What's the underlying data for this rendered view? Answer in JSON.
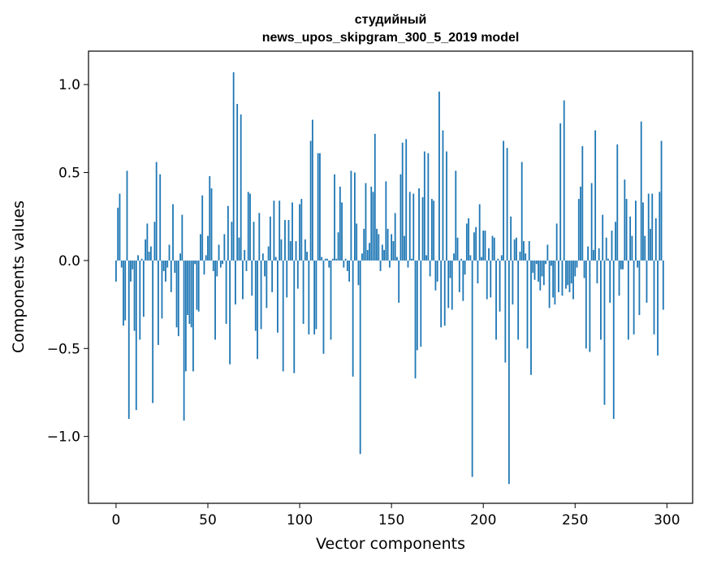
{
  "chart_data": {
    "type": "bar",
    "title": "студийный",
    "subtitle": "news_upos_skipgram_300_5_2019 model",
    "xlabel": "Vector components",
    "ylabel": "Components values",
    "xlim": [
      -15,
      314
    ],
    "ylim": [
      -1.38,
      1.19
    ],
    "xticks": [
      0,
      50,
      100,
      150,
      200,
      250,
      300
    ],
    "yticks": [
      1.0,
      0.5,
      0.0,
      -0.5,
      -1.0
    ],
    "ytick_labels": [
      "1.0",
      "0.5",
      "0.0",
      "−0.5",
      "−1.0"
    ],
    "bar_color": "#1f77b4",
    "values": [
      -0.12,
      0.3,
      0.38,
      -0.04,
      -0.37,
      -0.34,
      0.51,
      -0.9,
      -0.12,
      -0.05,
      -0.4,
      -0.85,
      0.03,
      -0.45,
      0.01,
      -0.32,
      0.12,
      0.21,
      0.05,
      0.08,
      -0.81,
      0.22,
      0.56,
      -0.48,
      0.49,
      -0.33,
      -0.06,
      -0.12,
      -0.04,
      0.09,
      -0.18,
      0.32,
      -0.07,
      -0.38,
      -0.43,
      0.04,
      0.26,
      -0.91,
      -0.63,
      -0.31,
      -0.36,
      -0.38,
      -0.63,
      -0.02,
      -0.28,
      -0.29,
      0.15,
      0.37,
      -0.08,
      0.03,
      0.14,
      0.48,
      0.41,
      -0.06,
      -0.45,
      -0.09,
      0.09,
      -0.04,
      -0.02,
      0.15,
      -0.36,
      0.31,
      -0.59,
      0.22,
      1.07,
      -0.25,
      0.89,
      0.13,
      0.83,
      -0.22,
      0.06,
      -0.06,
      0.39,
      0.38,
      -0.2,
      0.22,
      -0.4,
      -0.56,
      0.27,
      -0.39,
      0.04,
      -0.09,
      -0.27,
      0.08,
      0.25,
      -0.18,
      0.34,
      0.02,
      -0.41,
      0.34,
      0.12,
      -0.63,
      0.23,
      -0.21,
      0.23,
      0.11,
      0.33,
      -0.64,
      0.11,
      -0.16,
      0.32,
      0.35,
      -0.36,
      0.12,
      0.05,
      -0.42,
      0.68,
      0.8,
      -0.42,
      -0.39,
      0.61,
      0.61,
      0.02,
      -0.53,
      0.01,
      0.01,
      -0.04,
      -0.45,
      0.01,
      0.49,
      0.01,
      0.16,
      0.42,
      0.33,
      -0.04,
      0.01,
      -0.06,
      -0.12,
      0.51,
      -0.66,
      0.5,
      0.21,
      -0.14,
      -1.1,
      0.04,
      0.18,
      0.44,
      0.06,
      0.1,
      0.42,
      0.39,
      0.72,
      0.18,
      0.15,
      -0.06,
      0.09,
      0.06,
      0.45,
      0.18,
      -0.04,
      0.15,
      0.11,
      0.27,
      0.02,
      -0.24,
      0.49,
      0.67,
      0.14,
      0.69,
      -0.04,
      0.39,
      0.01,
      0.38,
      -0.67,
      -0.51,
      0.41,
      -0.49,
      0.36,
      0.62,
      0.03,
      0.61,
      -0.09,
      0.35,
      0.34,
      -0.17,
      -0.12,
      0.96,
      -0.38,
      0.74,
      -0.37,
      0.62,
      -0.27,
      -0.1,
      -0.28,
      0.04,
      0.51,
      0.13,
      -0.18,
      0.01,
      -0.23,
      -0.08,
      0.21,
      0.24,
      0.03,
      -1.23,
      0.16,
      0.19,
      -0.13,
      0.32,
      0.02,
      0.17,
      0.17,
      -0.22,
      0.07,
      -0.21,
      0.14,
      0.13,
      -0.45,
      0.01,
      -0.29,
      0.03,
      0.68,
      -0.58,
      0.64,
      -1.27,
      0.25,
      -0.25,
      0.12,
      0.13,
      -0.45,
      0.05,
      0.56,
      0.11,
      0.04,
      -0.5,
      0.11,
      -0.65,
      -0.07,
      -0.11,
      -0.02,
      -0.12,
      -0.17,
      -0.09,
      -0.14,
      -0.02,
      0.09,
      -0.27,
      -0.03,
      -0.21,
      -0.25,
      0.21,
      -0.18,
      0.78,
      -0.2,
      0.91,
      -0.16,
      -0.14,
      -0.18,
      -0.13,
      -0.22,
      -0.09,
      -0.04,
      0.35,
      0.42,
      0.65,
      -0.1,
      -0.5,
      0.08,
      -0.52,
      0.44,
      0.06,
      0.74,
      -0.13,
      0.07,
      -0.45,
      0.26,
      -0.82,
      0.13,
      0.01,
      -0.24,
      0.17,
      -0.9,
      0.22,
      0.66,
      -0.2,
      -0.05,
      -0.05,
      0.46,
      0.35,
      -0.45,
      0.25,
      0.14,
      -0.42,
      0.34,
      -0.04,
      -0.31,
      0.79,
      0.33,
      0.14,
      -0.24,
      0.38,
      0.18,
      0.38,
      -0.42,
      0.24,
      -0.54,
      0.39,
      0.68,
      -0.28
    ]
  }
}
